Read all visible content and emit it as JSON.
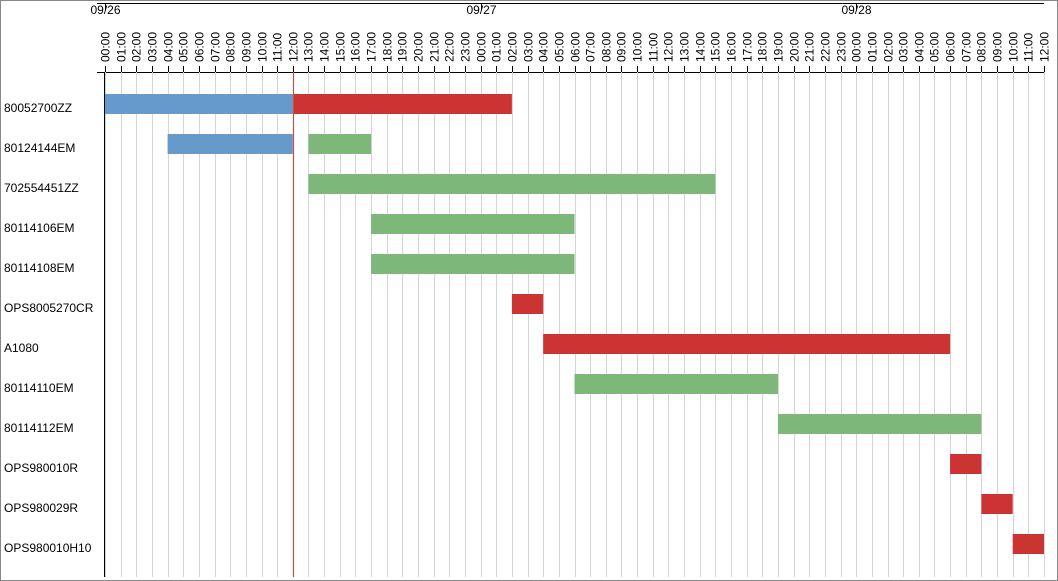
{
  "chart_data": {
    "type": "gantt",
    "xlim": [
      0,
      60
    ],
    "date_ticks": [
      {
        "value": 0,
        "label": "09/26"
      },
      {
        "value": 24,
        "label": "09/27"
      },
      {
        "value": 48,
        "label": "09/28"
      }
    ],
    "xticks": [
      {
        "value": 0,
        "label": "00:00"
      },
      {
        "value": 1,
        "label": "01:00"
      },
      {
        "value": 2,
        "label": "02:00"
      },
      {
        "value": 3,
        "label": "03:00"
      },
      {
        "value": 4,
        "label": "04:00"
      },
      {
        "value": 5,
        "label": "05:00"
      },
      {
        "value": 6,
        "label": "06:00"
      },
      {
        "value": 7,
        "label": "07:00"
      },
      {
        "value": 8,
        "label": "08:00"
      },
      {
        "value": 9,
        "label": "09:00"
      },
      {
        "value": 10,
        "label": "10:00"
      },
      {
        "value": 11,
        "label": "11:00"
      },
      {
        "value": 12,
        "label": "12:00"
      },
      {
        "value": 13,
        "label": "13:00"
      },
      {
        "value": 14,
        "label": "14:00"
      },
      {
        "value": 15,
        "label": "15:00"
      },
      {
        "value": 16,
        "label": "16:00"
      },
      {
        "value": 17,
        "label": "17:00"
      },
      {
        "value": 18,
        "label": "18:00"
      },
      {
        "value": 19,
        "label": "19:00"
      },
      {
        "value": 20,
        "label": "20:00"
      },
      {
        "value": 21,
        "label": "21:00"
      },
      {
        "value": 22,
        "label": "22:00"
      },
      {
        "value": 23,
        "label": "23:00"
      },
      {
        "value": 24,
        "label": "00:00"
      },
      {
        "value": 25,
        "label": "01:00"
      },
      {
        "value": 26,
        "label": "02:00"
      },
      {
        "value": 27,
        "label": "03:00"
      },
      {
        "value": 28,
        "label": "04:00"
      },
      {
        "value": 29,
        "label": "05:00"
      },
      {
        "value": 30,
        "label": "06:00"
      },
      {
        "value": 31,
        "label": "07:00"
      },
      {
        "value": 32,
        "label": "08:00"
      },
      {
        "value": 33,
        "label": "09:00"
      },
      {
        "value": 34,
        "label": "10:00"
      },
      {
        "value": 35,
        "label": "11:00"
      },
      {
        "value": 36,
        "label": "12:00"
      },
      {
        "value": 37,
        "label": "13:00"
      },
      {
        "value": 38,
        "label": "14:00"
      },
      {
        "value": 39,
        "label": "15:00"
      },
      {
        "value": 40,
        "label": "16:00"
      },
      {
        "value": 41,
        "label": "17:00"
      },
      {
        "value": 42,
        "label": "18:00"
      },
      {
        "value": 43,
        "label": "19:00"
      },
      {
        "value": 44,
        "label": "20:00"
      },
      {
        "value": 45,
        "label": "21:00"
      },
      {
        "value": 46,
        "label": "22:00"
      },
      {
        "value": 47,
        "label": "23:00"
      },
      {
        "value": 48,
        "label": "00:00"
      },
      {
        "value": 49,
        "label": "01:00"
      },
      {
        "value": 50,
        "label": "02:00"
      },
      {
        "value": 51,
        "label": "03:00"
      },
      {
        "value": 52,
        "label": "04:00"
      },
      {
        "value": 53,
        "label": "05:00"
      },
      {
        "value": 54,
        "label": "06:00"
      },
      {
        "value": 55,
        "label": "07:00"
      },
      {
        "value": 56,
        "label": "08:00"
      },
      {
        "value": 57,
        "label": "09:00"
      },
      {
        "value": 58,
        "label": "10:00"
      },
      {
        "value": 59,
        "label": "11:00"
      },
      {
        "value": 60,
        "label": "12:00"
      }
    ],
    "grid": true,
    "now": 12,
    "now_color": "#c0504d",
    "tasks": [
      {
        "name": "80052700ZZ",
        "bars": [
          {
            "start": 0,
            "end": 12,
            "color": "#6699cc"
          },
          {
            "start": 12,
            "end": 26,
            "color": "#cc3333"
          }
        ]
      },
      {
        "name": "80124144EM",
        "bars": [
          {
            "start": 4,
            "end": 12,
            "color": "#6699cc"
          },
          {
            "start": 13,
            "end": 17,
            "color": "#7db87a"
          }
        ]
      },
      {
        "name": "702554451ZZ",
        "bars": [
          {
            "start": 13,
            "end": 39,
            "color": "#7db87a"
          }
        ]
      },
      {
        "name": "80114106EM",
        "bars": [
          {
            "start": 17,
            "end": 30,
            "color": "#7db87a"
          }
        ]
      },
      {
        "name": "80114108EM",
        "bars": [
          {
            "start": 17,
            "end": 30,
            "color": "#7db87a"
          }
        ]
      },
      {
        "name": "OPS8005270CR",
        "bars": [
          {
            "start": 26,
            "end": 28,
            "color": "#cc3333"
          }
        ]
      },
      {
        "name": "A1080",
        "bars": [
          {
            "start": 28,
            "end": 54,
            "color": "#cc3333"
          }
        ]
      },
      {
        "name": "80114110EM",
        "bars": [
          {
            "start": 30,
            "end": 43,
            "color": "#7db87a"
          }
        ]
      },
      {
        "name": "80114112EM",
        "bars": [
          {
            "start": 43,
            "end": 56,
            "color": "#7db87a"
          }
        ]
      },
      {
        "name": "OPS980010R",
        "bars": [
          {
            "start": 54,
            "end": 56,
            "color": "#cc3333"
          }
        ]
      },
      {
        "name": "OPS980029R",
        "bars": [
          {
            "start": 56,
            "end": 58,
            "color": "#cc3333"
          }
        ]
      },
      {
        "name": "OPS980010H10",
        "bars": [
          {
            "start": 58,
            "end": 60,
            "color": "#cc3333"
          }
        ]
      }
    ]
  }
}
